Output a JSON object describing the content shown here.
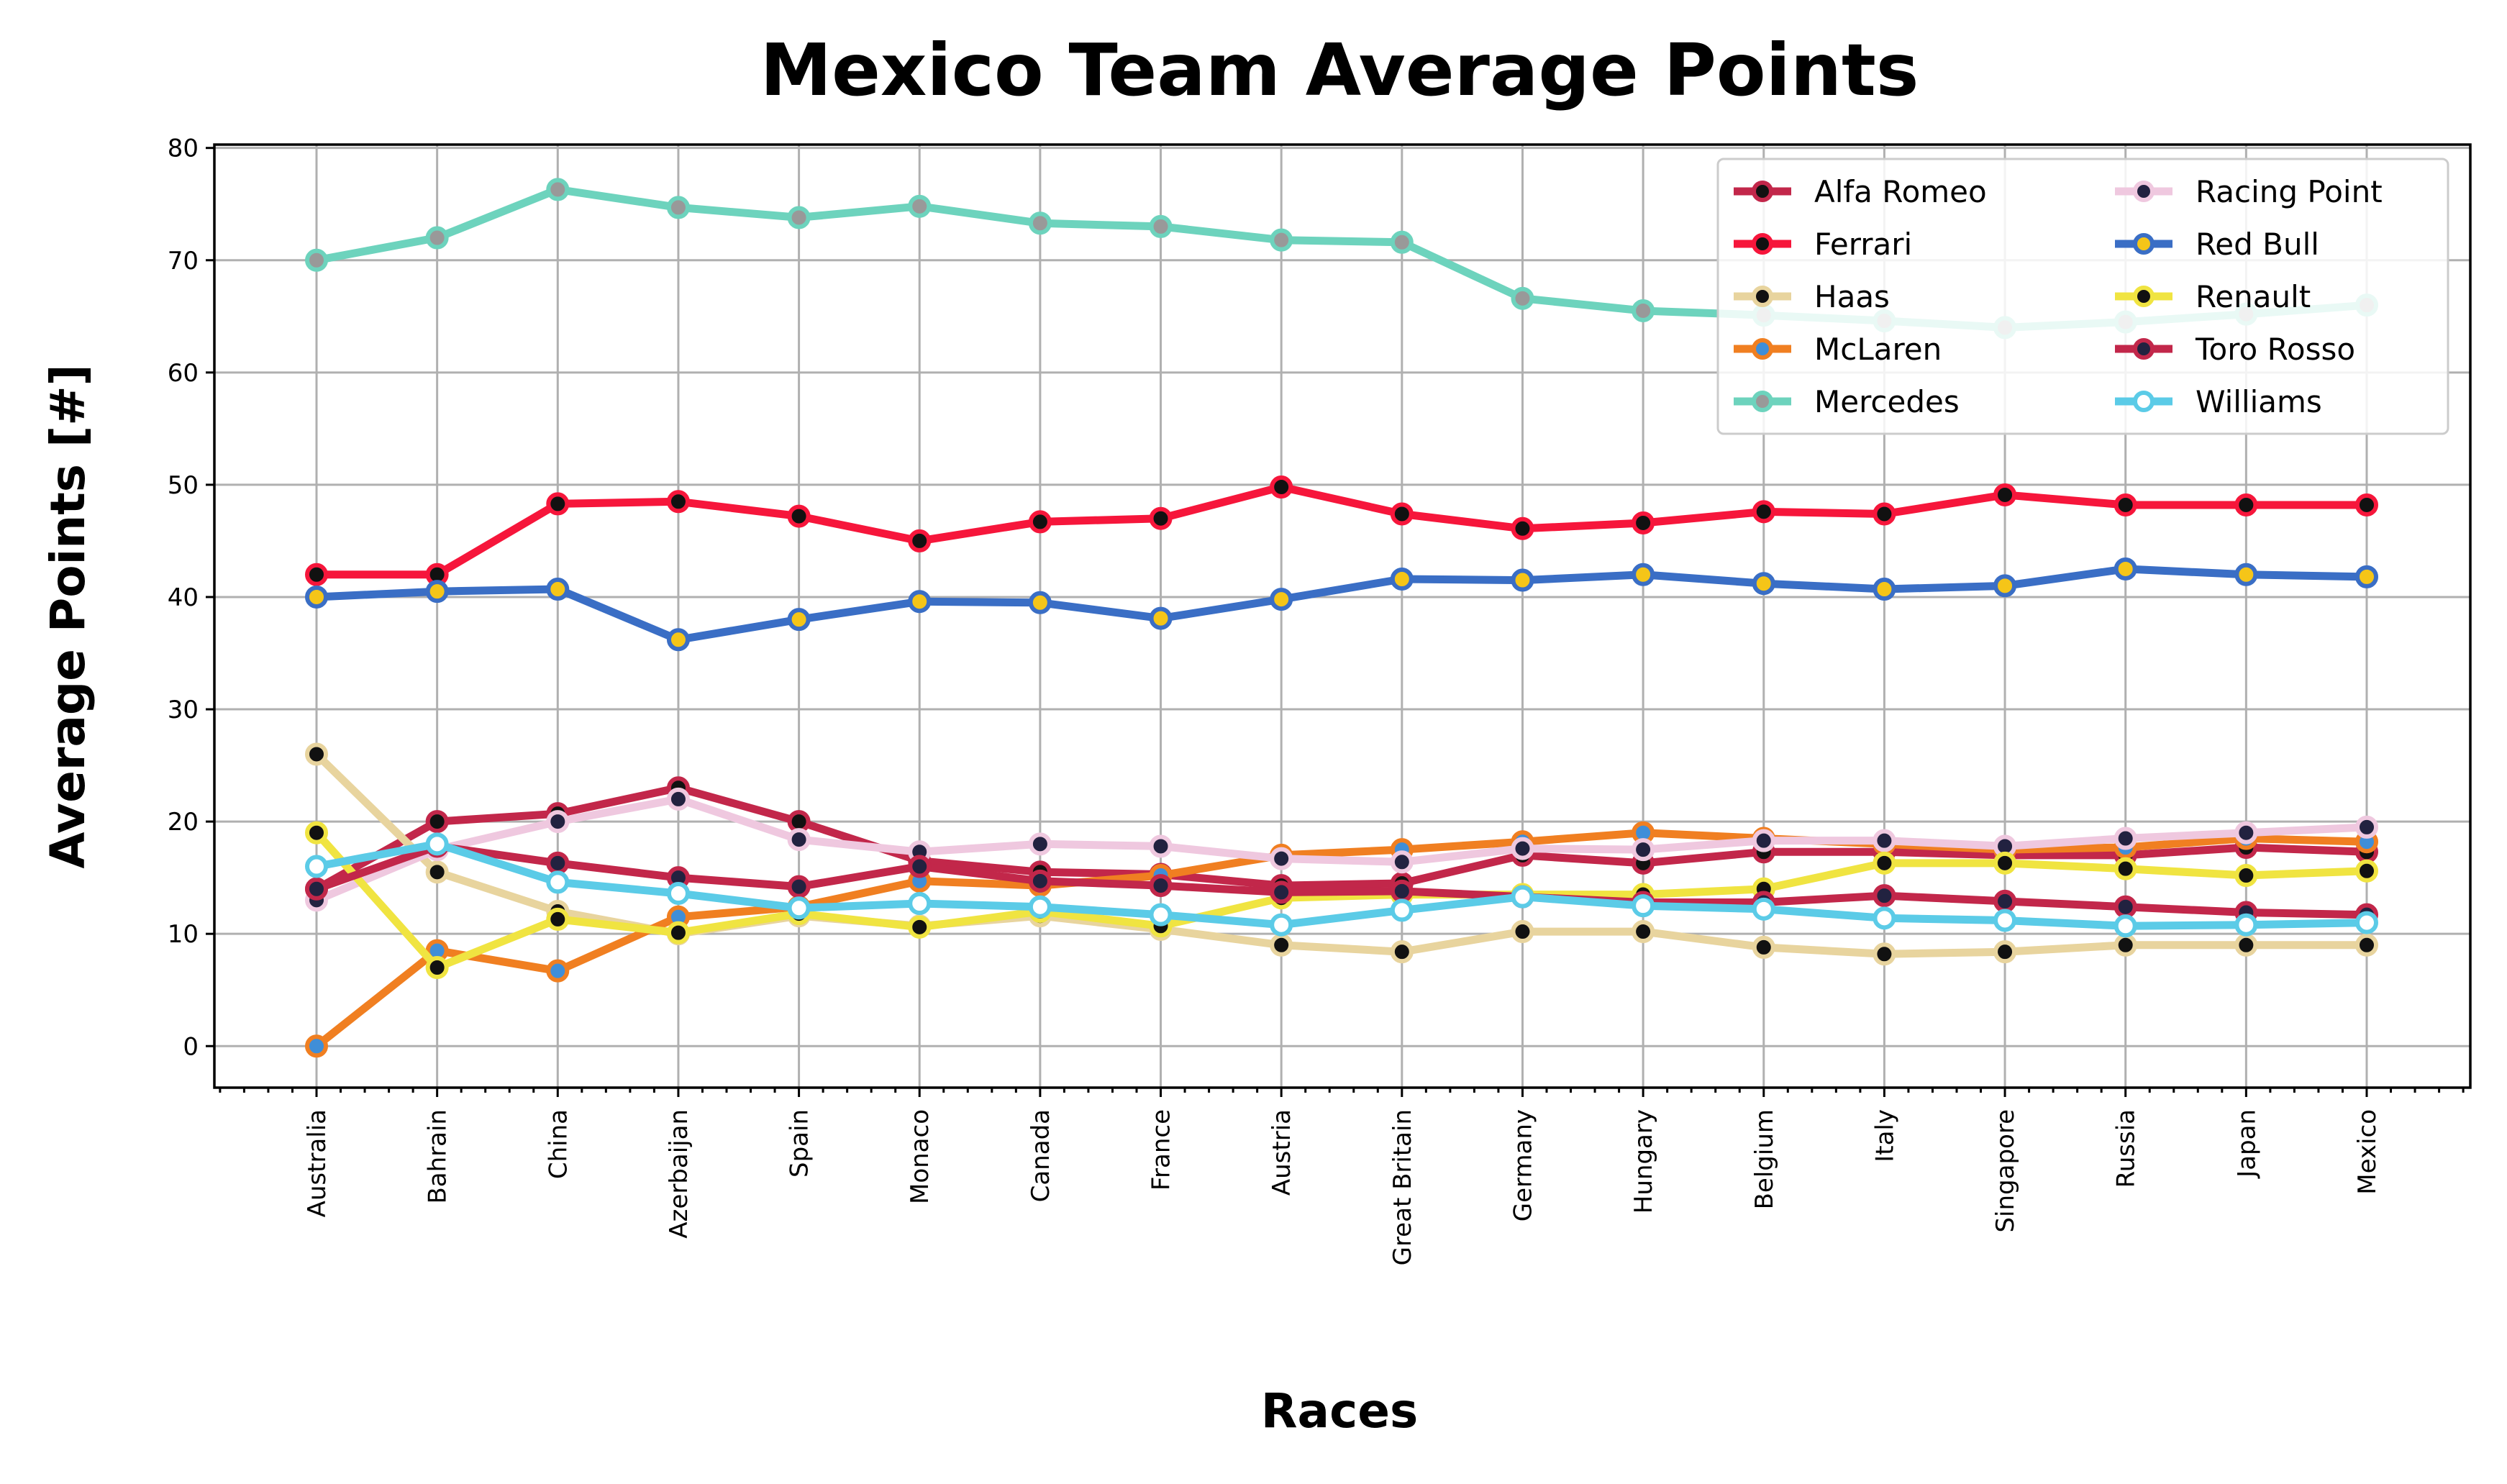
{
  "chart_data": {
    "type": "line",
    "title": "Mexico Team Average Points",
    "xlabel": "Races",
    "ylabel": "Average Points [#]",
    "ylim": [
      -3.7,
      80.3
    ],
    "yticks": [
      0,
      10,
      20,
      30,
      40,
      50,
      60,
      70,
      80
    ],
    "grid": true,
    "legend_position": "top-right",
    "categories": [
      "Australia",
      "Bahrain",
      "China",
      "Azerbaijan",
      "Spain",
      "Monaco",
      "Canada",
      "France",
      "Austria",
      "Great Britain",
      "Germany",
      "Hungary",
      "Belgium",
      "Italy",
      "Singapore",
      "Russia",
      "Japan",
      "Mexico"
    ],
    "series": [
      {
        "name": "Alfa Romeo",
        "color": "#c2274a",
        "marker_face": "#111111",
        "marker_edge": "#c2274a",
        "values": [
          14,
          20,
          20.7,
          23,
          20,
          16.5,
          15.5,
          15.3,
          14.3,
          14.5,
          17,
          16.3,
          17.3,
          17.3,
          17,
          17,
          17.7,
          17.3
        ]
      },
      {
        "name": "Ferrari",
        "color": "#f6163b",
        "marker_face": "#111111",
        "marker_edge": "#f6163b",
        "values": [
          42,
          42,
          48.3,
          48.5,
          47.2,
          45,
          46.7,
          47,
          49.8,
          47.4,
          46.1,
          46.6,
          47.6,
          47.4,
          49.1,
          48.2,
          48.2,
          48.2
        ]
      },
      {
        "name": "Haas",
        "color": "#e8d49e",
        "marker_face": "#111111",
        "marker_edge": "#e8d49e",
        "values": [
          26,
          15.5,
          12,
          10,
          11.6,
          10.7,
          11.6,
          10.4,
          9,
          8.4,
          10.2,
          10.2,
          8.8,
          8.2,
          8.4,
          9,
          9,
          9
        ]
      },
      {
        "name": "McLaren",
        "color": "#f07f21",
        "marker_face": "#3f8ed8",
        "marker_edge": "#f07f21",
        "values": [
          0,
          8.5,
          6.7,
          11.5,
          12.4,
          14.7,
          14.3,
          15.2,
          17,
          17.5,
          18.2,
          19,
          18.5,
          18,
          17.5,
          17.7,
          18.5,
          18.2
        ]
      },
      {
        "name": "Mercedes",
        "color": "#6dd3bd",
        "marker_face": "#999999",
        "marker_edge": "#6dd3bd",
        "values": [
          70,
          72,
          76.3,
          74.7,
          73.8,
          74.8,
          73.3,
          73,
          71.8,
          71.6,
          66.6,
          65.5,
          65.1,
          64.6,
          64,
          64.5,
          65.2,
          66
        ]
      },
      {
        "name": "Racing Point",
        "color": "#efc8df",
        "marker_face": "#222240",
        "marker_edge": "#efc8df",
        "values": [
          13,
          17.5,
          20,
          22,
          18.4,
          17.3,
          18,
          17.8,
          16.7,
          16.4,
          17.6,
          17.5,
          18.3,
          18.3,
          17.8,
          18.5,
          19,
          19.5
        ]
      },
      {
        "name": "Red Bull",
        "color": "#3a6ec5",
        "marker_face": "#f5c518",
        "marker_edge": "#3a6ec5",
        "values": [
          40,
          40.5,
          40.7,
          36.2,
          38,
          39.6,
          39.5,
          38.1,
          39.8,
          41.6,
          41.5,
          42,
          41.2,
          40.7,
          41,
          42.5,
          42,
          41.8
        ]
      },
      {
        "name": "Renault",
        "color": "#f0e441",
        "marker_face": "#111111",
        "marker_edge": "#f0e441",
        "values": [
          19,
          7,
          11.3,
          10.1,
          11.8,
          10.6,
          12,
          10.7,
          13.2,
          13.5,
          13.5,
          13.5,
          14,
          16.3,
          16.3,
          15.8,
          15.2,
          15.6
        ]
      },
      {
        "name": "Toro Rosso",
        "color": "#c2274a",
        "marker_face": "#222240",
        "marker_edge": "#c2274a",
        "values": [
          14,
          17.8,
          16.3,
          15,
          14.2,
          16,
          14.7,
          14.3,
          13.7,
          13.8,
          13.3,
          12.8,
          12.8,
          13.4,
          12.9,
          12.4,
          11.9,
          11.7
        ]
      },
      {
        "name": "Williams",
        "color": "#5bcbe7",
        "marker_face": "#ffffff",
        "marker_edge": "#5bcbe7",
        "values": [
          16,
          18,
          14.6,
          13.6,
          12.3,
          12.7,
          12.4,
          11.7,
          10.8,
          12.1,
          13.3,
          12.5,
          12.2,
          11.4,
          11.2,
          10.7,
          10.8,
          11
        ]
      }
    ]
  }
}
